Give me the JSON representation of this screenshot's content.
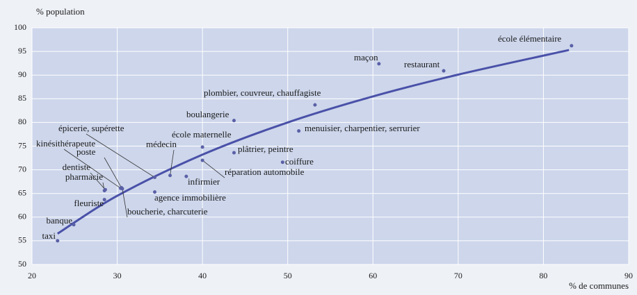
{
  "chart_data": {
    "type": "scatter",
    "y_axis_label": "% population",
    "x_axis_label": "% de communes",
    "xlim": [
      20,
      90
    ],
    "xticks": [
      20,
      30,
      40,
      50,
      60,
      70,
      80,
      90
    ],
    "ylim": [
      50,
      100
    ],
    "yticks": [
      50,
      55,
      60,
      65,
      70,
      75,
      80,
      85,
      90,
      95,
      100
    ],
    "grid": true,
    "point_color": "#5a60a6",
    "trend_color": "#4a51a8",
    "points": [
      {
        "label": "taxi",
        "x": 23.0,
        "y": 55.0
      },
      {
        "label": "banque",
        "x": 24.9,
        "y": 58.4
      },
      {
        "label": "fleuriste",
        "x": 28.5,
        "y": 63.7
      },
      {
        "label": "pharmacie",
        "x": 28.5,
        "y": 65.6
      },
      {
        "label": "dentiste",
        "x": 28.6,
        "y": 65.8
      },
      {
        "label": "kinésithérapeute",
        "x": 30.4,
        "y": 66.1
      },
      {
        "label": "poste",
        "x": 30.5,
        "y": 66.2
      },
      {
        "label": "boucherie, charcuterie",
        "x": 30.6,
        "y": 66.0
      },
      {
        "label": "épicerie, supérette",
        "x": 34.4,
        "y": 68.4
      },
      {
        "label": "agence immobilière",
        "x": 34.4,
        "y": 65.3
      },
      {
        "label": "médecin",
        "x": 36.2,
        "y": 68.8
      },
      {
        "label": "infirmier",
        "x": 38.1,
        "y": 68.6
      },
      {
        "label": "école maternelle",
        "x": 40.0,
        "y": 74.8
      },
      {
        "label": "réparation automobile",
        "x": 40.0,
        "y": 72.0
      },
      {
        "label": "boulangerie",
        "x": 43.7,
        "y": 80.4
      },
      {
        "label": "plâtrier, peintre",
        "x": 43.7,
        "y": 73.6
      },
      {
        "label": "coiffure",
        "x": 49.4,
        "y": 71.6
      },
      {
        "label": "menuisier, charpentier, serrurier",
        "x": 51.3,
        "y": 78.2
      },
      {
        "label": "plombier, couvreur, chauffagiste",
        "x": 53.2,
        "y": 83.7
      },
      {
        "label": "maçon",
        "x": 60.7,
        "y": 92.4
      },
      {
        "label": "restaurant",
        "x": 68.3,
        "y": 90.9
      },
      {
        "label": "école élémentaire",
        "x": 83.3,
        "y": 96.2
      }
    ],
    "trendline": {
      "x": [
        23,
        30,
        40,
        50,
        60,
        70,
        83
      ],
      "y": [
        56.5,
        64.5,
        73.2,
        80.0,
        85.5,
        90.1,
        95.3
      ]
    }
  }
}
